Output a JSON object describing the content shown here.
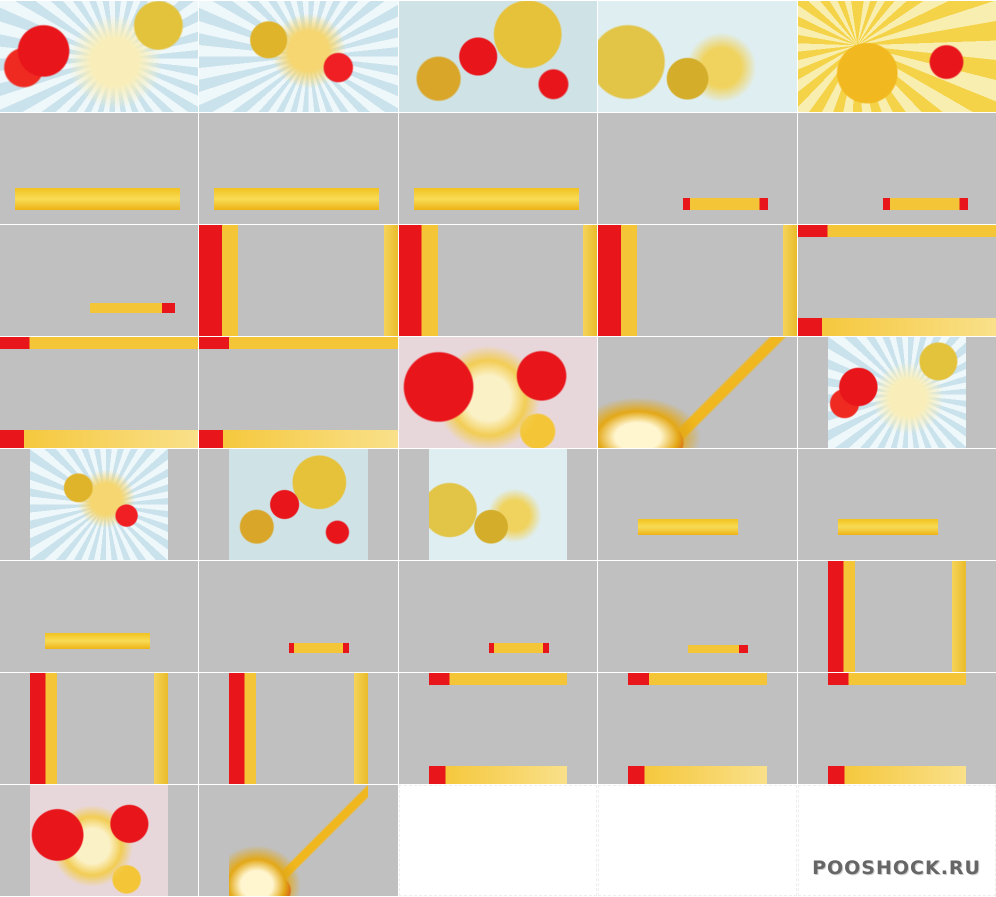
{
  "watermark": "POOSHOCK.RU"
}
